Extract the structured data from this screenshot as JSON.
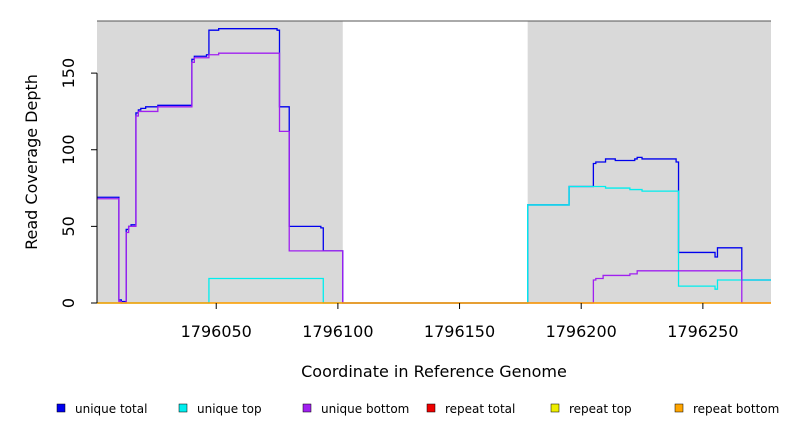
{
  "chart_data": {
    "type": "line",
    "xlabel": "Coordinate in Reference Genome",
    "ylabel": "Read Coverage Depth",
    "xlim": [
      1796001,
      1796278
    ],
    "ylim": [
      0,
      184
    ],
    "xticks": [
      1796050,
      1796100,
      1796150,
      1796200,
      1796250
    ],
    "xtick_labels": [
      "1796050",
      "1796100",
      "1796150",
      "1796200",
      "1796250"
    ],
    "yticks": [
      0,
      50,
      100,
      150
    ],
    "ytick_labels": [
      "0",
      "50",
      "100",
      "150"
    ],
    "shaded_regions": [
      {
        "x0": 1796001,
        "x1": 1796102,
        "color": "#d9d9d9"
      },
      {
        "x0": 1796178,
        "x1": 1796278,
        "color": "#d9d9d9"
      }
    ],
    "grid": false,
    "legend_position": "bottom",
    "series": [
      {
        "name": "unique total",
        "color": "#0000ee",
        "x": [
          1796001,
          1796010,
          1796011,
          1796013,
          1796014,
          1796015,
          1796017,
          1796018,
          1796019,
          1796020,
          1796021,
          1796022,
          1796024,
          1796026,
          1796040,
          1796041,
          1796042,
          1796046,
          1796047,
          1796051,
          1796075,
          1796076,
          1796080,
          1796093,
          1796094,
          1796102,
          1796178,
          1796195,
          1796205,
          1796206,
          1796208,
          1796210,
          1796214,
          1796222,
          1796223,
          1796225,
          1796239,
          1796240,
          1796255,
          1796256,
          1796266,
          1796278
        ],
        "y": [
          69,
          2,
          1,
          48,
          50,
          51,
          124,
          126,
          127,
          127,
          128,
          128,
          128,
          129,
          159,
          161,
          161,
          162,
          178,
          179,
          178,
          128,
          50,
          49,
          34,
          0,
          64,
          76,
          91,
          92,
          92,
          94,
          93,
          94,
          95,
          94,
          92,
          33,
          30,
          36,
          15,
          15
        ]
      },
      {
        "name": "unique top",
        "color": "#00eeee",
        "x": [
          1796001,
          1796047,
          1796093,
          1796094,
          1796178,
          1796195,
          1796205,
          1796210,
          1796220,
          1796225,
          1796240,
          1796255,
          1796256,
          1796266,
          1796278
        ],
        "y": [
          0,
          16,
          16,
          0,
          64,
          76,
          76,
          75,
          74,
          73,
          11,
          9,
          15,
          15,
          15
        ]
      },
      {
        "name": "unique bottom",
        "color": "#a020f0",
        "x": [
          1796001,
          1796010,
          1796011,
          1796013,
          1796014,
          1796017,
          1796018,
          1796026,
          1796040,
          1796041,
          1796047,
          1796051,
          1796075,
          1796076,
          1796080,
          1796094,
          1796102,
          1796205,
          1796206,
          1796209,
          1796215,
          1796218,
          1796220,
          1796223,
          1796240,
          1796266,
          1796278
        ],
        "y": [
          68,
          1,
          0,
          46,
          50,
          122,
          125,
          128,
          157,
          160,
          162,
          163,
          163,
          112,
          34,
          34,
          0,
          15,
          16,
          18,
          18,
          18,
          19,
          21,
          21,
          0,
          0
        ]
      },
      {
        "name": "repeat total",
        "color": "#ee0000",
        "x": [
          1796001,
          1796278
        ],
        "y": [
          0,
          0
        ]
      },
      {
        "name": "repeat top",
        "color": "#eeee00",
        "x": [
          1796001,
          1796278
        ],
        "y": [
          0,
          0
        ]
      },
      {
        "name": "repeat bottom",
        "color": "#ffa500",
        "x": [
          1796001,
          1796278
        ],
        "y": [
          0,
          0
        ]
      }
    ]
  }
}
